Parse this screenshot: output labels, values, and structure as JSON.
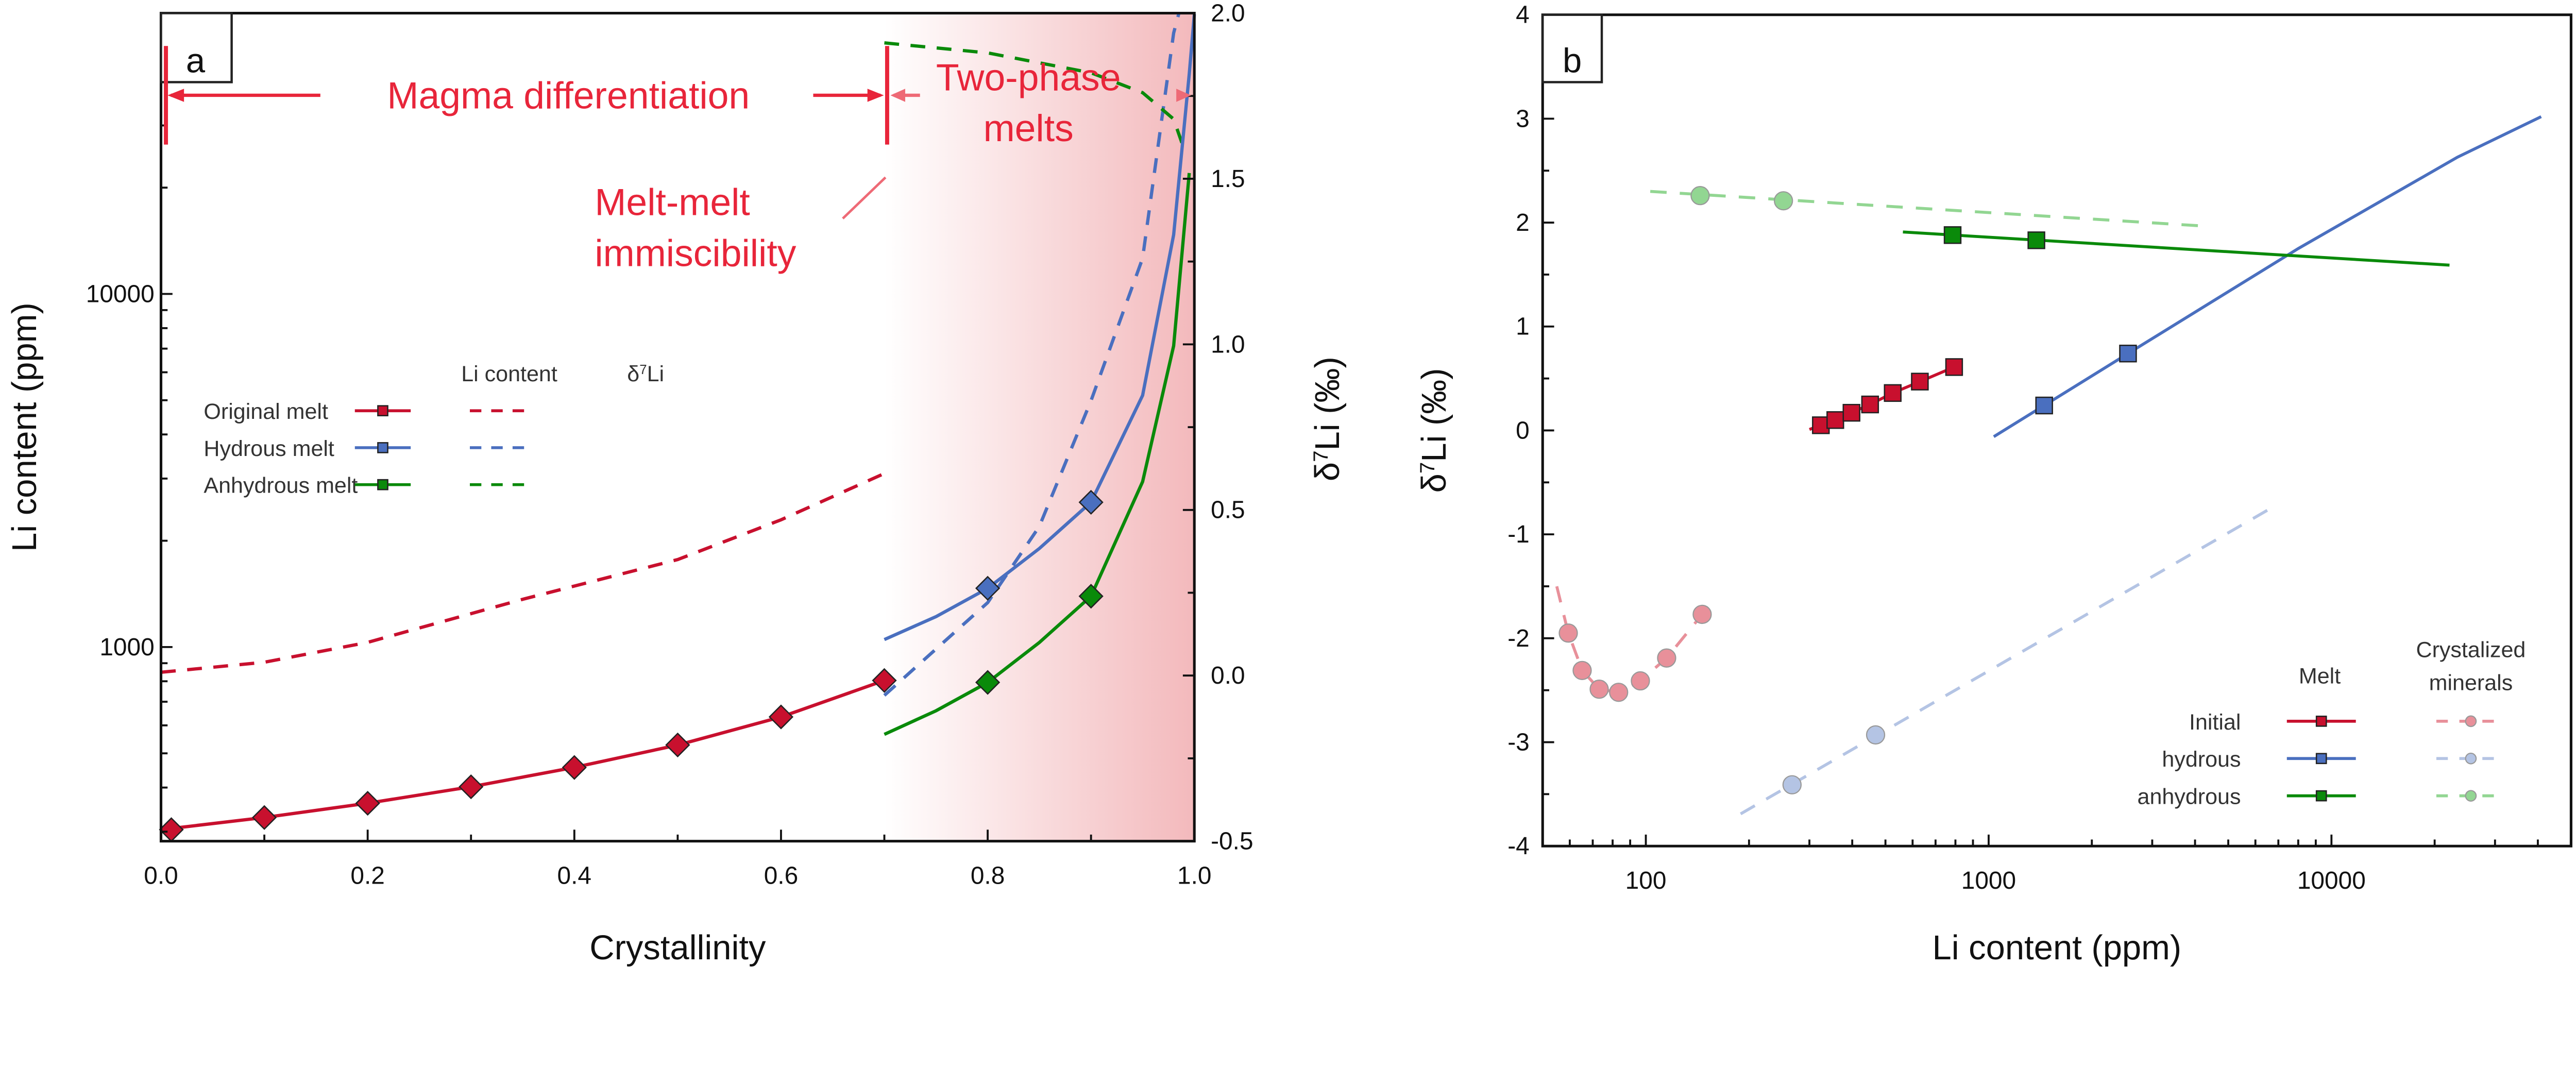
{
  "colors": {
    "initial": "#c8102e",
    "hydrous": "#4a6fbf",
    "anhydrous": "#0a8a0a",
    "annotation": "#e8253a",
    "annotation_light": "#ee6a76",
    "shade": "#f3b9bc",
    "pink_mineral": "#e8909a",
    "blue_mineral": "#b4c4e4",
    "green_mineral": "#92d692"
  },
  "chart_data": [
    {
      "panel_label": "a",
      "type": "line",
      "xlabel": "Crystallinity",
      "ylabel_left": "Li content (ppm)",
      "ylabel_right": "δ7Li (‰)",
      "ylabel_right_parts": [
        "δ",
        "7",
        "Li (‰)"
      ],
      "xlim": [
        0,
        1
      ],
      "ylim_left": [
        282,
        62400
      ],
      "yscale_left": "log",
      "ylim_right": [
        -0.5,
        2.0
      ],
      "xticks": [
        "0.0",
        "0.2",
        "0.4",
        "0.6",
        "0.8",
        "1.0"
      ],
      "yticks_left": [
        "1000",
        "10000"
      ],
      "yticks_right": [
        "-0.5",
        "0.0",
        "0.5",
        "1.0",
        "1.5",
        "2.0"
      ],
      "shaded_region": {
        "x_from": 0.7,
        "x_to": 1.0
      },
      "annotations": {
        "magma_differentiation": "Magma differentiation",
        "two_phase_line1": "Two-phase",
        "two_phase_line2": "melts",
        "immiscibility_line1": "Melt-melt",
        "immiscibility_line2": "immiscibility"
      },
      "legend": {
        "header_li": "Li content",
        "header_delta": [
          "δ",
          "7",
          "Li"
        ],
        "rows": [
          "Original melt",
          "Hydrous melt",
          "Anhydrous melt"
        ]
      },
      "li_series": [
        {
          "key": "initial",
          "curve": [
            [
              0,
              304
            ],
            [
              0.1,
              329
            ],
            [
              0.2,
              361
            ],
            [
              0.3,
              402
            ],
            [
              0.4,
              456
            ],
            [
              0.5,
              528
            ],
            [
              0.6,
              634
            ],
            [
              0.7,
              804
            ]
          ],
          "points": [
            [
              0.01,
              304
            ],
            [
              0.1,
              329
            ],
            [
              0.2,
              361
            ],
            [
              0.3,
              402
            ],
            [
              0.4,
              456
            ],
            [
              0.5,
              528
            ],
            [
              0.6,
              634
            ],
            [
              0.7,
              804
            ]
          ]
        },
        {
          "key": "hydrous",
          "curve": [
            [
              0.7,
              1050
            ],
            [
              0.75,
              1220
            ],
            [
              0.8,
              1467
            ],
            [
              0.85,
              1900
            ],
            [
              0.9,
              2570
            ],
            [
              0.95,
              5160
            ],
            [
              0.98,
              14700
            ],
            [
              0.995,
              42000
            ],
            [
              1.0,
              62000
            ]
          ],
          "points": [
            [
              0.8,
              1467
            ],
            [
              0.9,
              2570
            ]
          ]
        },
        {
          "key": "anhydrous",
          "curve": [
            [
              0.7,
              566
            ],
            [
              0.75,
              660
            ],
            [
              0.8,
              794
            ],
            [
              0.85,
              1030
            ],
            [
              0.9,
              1393
            ],
            [
              0.95,
              2940
            ],
            [
              0.98,
              7130
            ],
            [
              0.995,
              22000
            ]
          ],
          "points": [
            [
              0.8,
              794
            ],
            [
              0.9,
              1393
            ]
          ]
        }
      ],
      "delta_series": [
        {
          "key": "initial",
          "curve": [
            [
              0,
              0.01
            ],
            [
              0.1,
              0.04
            ],
            [
              0.2,
              0.1
            ],
            [
              0.35,
              0.23
            ],
            [
              0.5,
              0.35
            ],
            [
              0.6,
              0.47
            ],
            [
              0.7,
              0.61
            ]
          ]
        },
        {
          "key": "hydrous",
          "curve": [
            [
              0.7,
              -0.06
            ],
            [
              0.8,
              0.22
            ],
            [
              0.85,
              0.45
            ],
            [
              0.9,
              0.83
            ],
            [
              0.95,
              1.26
            ],
            [
              0.98,
              1.94
            ],
            [
              0.985,
              2.0
            ]
          ]
        },
        {
          "key": "anhydrous",
          "curve": [
            [
              0.7,
              1.91
            ],
            [
              0.8,
              1.88
            ],
            [
              0.9,
              1.82
            ],
            [
              0.95,
              1.76
            ],
            [
              0.98,
              1.68
            ],
            [
              0.99,
              1.59
            ]
          ]
        }
      ]
    },
    {
      "panel_label": "b",
      "type": "scatter",
      "xlabel": "Li content (ppm)",
      "ylabel_parts": [
        "δ",
        "7",
        "Li (‰)"
      ],
      "xlim": [
        50,
        50000
      ],
      "xscale": "log",
      "ylim": [
        -4,
        4
      ],
      "xticks": [
        "100",
        "1000",
        "10000"
      ],
      "yticks": [
        "-4",
        "-3",
        "-2",
        "-1",
        "0",
        "1",
        "2",
        "3",
        "4"
      ],
      "legend": {
        "header_melt": "Melt",
        "header_minerals_line1": "Crystalized",
        "header_minerals_line2": "minerals",
        "rows": [
          "Initial",
          "hydrous",
          "anhydrous"
        ]
      },
      "melt_series": [
        {
          "key": "initial",
          "line": [
            [
              300,
              0.01
            ],
            [
              324,
              0.05
            ],
            [
              357,
              0.1
            ],
            [
              398,
              0.17
            ],
            [
              451,
              0.25
            ],
            [
              525,
              0.36
            ],
            [
              630,
              0.47
            ],
            [
              793,
              0.61
            ]
          ],
          "points": [
            [
              324,
              0.05
            ],
            [
              357,
              0.1
            ],
            [
              398,
              0.17
            ],
            [
              451,
              0.25
            ],
            [
              525,
              0.36
            ],
            [
              630,
              0.47
            ],
            [
              793,
              0.61
            ]
          ]
        },
        {
          "key": "hydrous",
          "line": [
            [
              1035,
              -0.06
            ],
            [
              1452,
              0.24
            ],
            [
              2550,
              0.74
            ],
            [
              8000,
              1.75
            ],
            [
              23300,
              2.63
            ],
            [
              40900,
              3.02
            ]
          ],
          "points": [
            [
              1452,
              0.24
            ],
            [
              2550,
              0.74
            ]
          ]
        },
        {
          "key": "anhydrous",
          "line": [
            [
              562,
              1.91
            ],
            [
              22100,
              1.59
            ]
          ],
          "points": [
            [
              785,
              1.88
            ],
            [
              1378,
              1.83
            ]
          ]
        }
      ],
      "mineral_series": [
        {
          "key": "pink_mineral",
          "line": [
            [
              55,
              -1.5
            ],
            [
              59.4,
              -1.95
            ],
            [
              65.2,
              -2.31
            ],
            [
              73.1,
              -2.49
            ],
            [
              83.3,
              -2.52
            ],
            [
              96.4,
              -2.41
            ],
            [
              115,
              -2.19
            ],
            [
              146,
              -1.77
            ]
          ],
          "points": [
            [
              59.4,
              -1.95
            ],
            [
              65.2,
              -2.31
            ],
            [
              73.1,
              -2.49
            ],
            [
              83.3,
              -2.52
            ],
            [
              96.4,
              -2.41
            ],
            [
              115,
              -2.19
            ],
            [
              146,
              -1.77
            ]
          ]
        },
        {
          "key": "blue_mineral",
          "line": [
            [
              189,
              -3.69
            ],
            [
              6650,
              -0.75
            ]
          ],
          "points": [
            [
              267,
              -3.41
            ],
            [
              468,
              -2.93
            ]
          ]
        },
        {
          "key": "green_mineral",
          "line": [
            [
              103,
              2.3
            ],
            [
              4100,
              1.97
            ]
          ],
          "points": [
            [
              144,
              2.26
            ],
            [
              252,
              2.21
            ]
          ]
        }
      ]
    }
  ]
}
